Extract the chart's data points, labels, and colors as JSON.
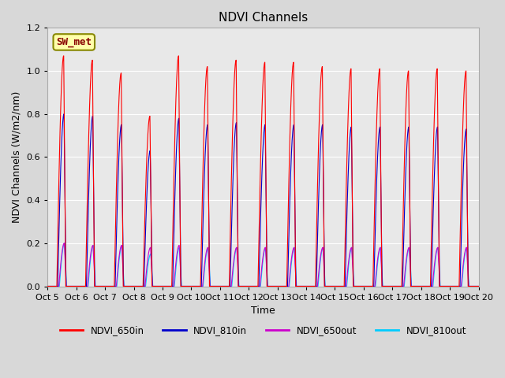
{
  "title": "NDVI Channels",
  "xlabel": "Time",
  "ylabel": "NDVI Channels (W/m2/nm)",
  "annotation": "SW_met",
  "ylim": [
    0,
    1.2
  ],
  "num_cycles": 15,
  "legend_labels": [
    "NDVI_650in",
    "NDVI_810in",
    "NDVI_650out",
    "NDVI_810out"
  ],
  "legend_colors": [
    "#ff0000",
    "#0000cc",
    "#cc00cc",
    "#00ccff"
  ],
  "line_colors": {
    "NDVI_650in": "#ff0000",
    "NDVI_810in": "#0000cc",
    "NDVI_650out": "#cc00cc",
    "NDVI_810out": "#00ccff"
  },
  "fig_bg_color": "#d8d8d8",
  "plot_bg_color": "#e8e8e8",
  "grid_color": "#ffffff",
  "annotation_bg": "#ffffaa",
  "annotation_edge": "#888800",
  "annotation_text_color": "#880000",
  "tick_labels": [
    "Oct 5",
    "Oct 6",
    "Oct 7",
    "Oct 8",
    "Oct 9",
    "Oct 10",
    "Oct 11",
    "Oct 12",
    "Oct 13",
    "Oct 14",
    "Oct 15",
    "Oct 16",
    "Oct 17",
    "Oct 18",
    "Oct 19",
    "Oct 20"
  ],
  "peaks_650in": [
    1.07,
    1.05,
    0.99,
    0.79,
    1.07,
    1.02,
    1.05,
    1.04,
    1.04,
    1.02,
    1.01,
    1.01,
    1.0,
    1.01,
    1.0
  ],
  "peaks_810in": [
    0.8,
    0.79,
    0.75,
    0.63,
    0.78,
    0.75,
    0.76,
    0.75,
    0.75,
    0.75,
    0.74,
    0.74,
    0.74,
    0.74,
    0.73
  ],
  "peaks_650out": [
    0.2,
    0.19,
    0.19,
    0.18,
    0.19,
    0.18,
    0.18,
    0.18,
    0.18,
    0.18,
    0.18,
    0.18,
    0.18,
    0.18,
    0.18
  ],
  "peaks_810out": [
    0.2,
    0.19,
    0.19,
    0.15,
    0.18,
    0.18,
    0.18,
    0.18,
    0.18,
    0.18,
    0.18,
    0.18,
    0.18,
    0.18,
    0.18
  ],
  "yticks": [
    0.0,
    0.2,
    0.4,
    0.6,
    0.8,
    1.0,
    1.2
  ]
}
